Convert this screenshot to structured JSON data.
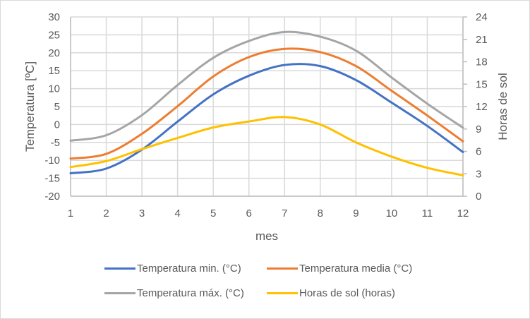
{
  "chart_data": {
    "type": "line",
    "title": "",
    "xlabel": "mes",
    "ylabel": "Temperatura [ºC]",
    "y2label": "Horas de sol",
    "x": [
      1,
      2,
      3,
      4,
      5,
      6,
      7,
      8,
      9,
      10,
      11,
      12
    ],
    "x_ticks": [
      "1",
      "2",
      "3",
      "4",
      "5",
      "6",
      "7",
      "8",
      "9",
      "10",
      "11",
      "12"
    ],
    "ylim": [
      -20,
      30
    ],
    "y_ticks": [
      "30",
      "25",
      "20",
      "15",
      "10",
      "5",
      "0",
      "-5",
      "-10",
      "-15",
      "-20"
    ],
    "y_tick_values": [
      30,
      25,
      20,
      15,
      10,
      5,
      0,
      -5,
      -10,
      -15,
      -20
    ],
    "y2lim": [
      0,
      24
    ],
    "y2_ticks": [
      "24",
      "21",
      "18",
      "15",
      "12",
      "9",
      "6",
      "3",
      "0"
    ],
    "y2_tick_values": [
      24,
      21,
      18,
      15,
      12,
      9,
      6,
      3,
      0
    ],
    "grid": true,
    "smooth": true,
    "legend_position": "bottom",
    "series": [
      {
        "name": "Temperatura min. (°C)",
        "axis": "left",
        "color": "#4472c4",
        "values": [
          -13.6,
          -12.3,
          -7.0,
          0.8,
          8.4,
          13.6,
          16.6,
          16.3,
          12.4,
          6.1,
          -0.4,
          -7.7
        ]
      },
      {
        "name": "Temperatura media (°C)",
        "axis": "left",
        "color": "#ed7d31",
        "values": [
          -9.5,
          -8.2,
          -2.6,
          5.1,
          13.4,
          18.8,
          21.1,
          20.2,
          16.3,
          9.4,
          2.5,
          -4.7
        ]
      },
      {
        "name": "Temperatura máx. (°C)",
        "axis": "left",
        "color": "#a5a5a5",
        "values": [
          -4.5,
          -3.0,
          2.6,
          11.0,
          18.6,
          23.3,
          25.8,
          24.5,
          20.6,
          13.1,
          5.8,
          -0.9
        ]
      },
      {
        "name": "Horas de sol (horas)",
        "axis": "right",
        "color": "#ffc000",
        "values": [
          3.9,
          4.7,
          6.3,
          7.8,
          9.2,
          10.0,
          10.6,
          9.6,
          7.2,
          5.3,
          3.8,
          2.8
        ]
      }
    ]
  }
}
